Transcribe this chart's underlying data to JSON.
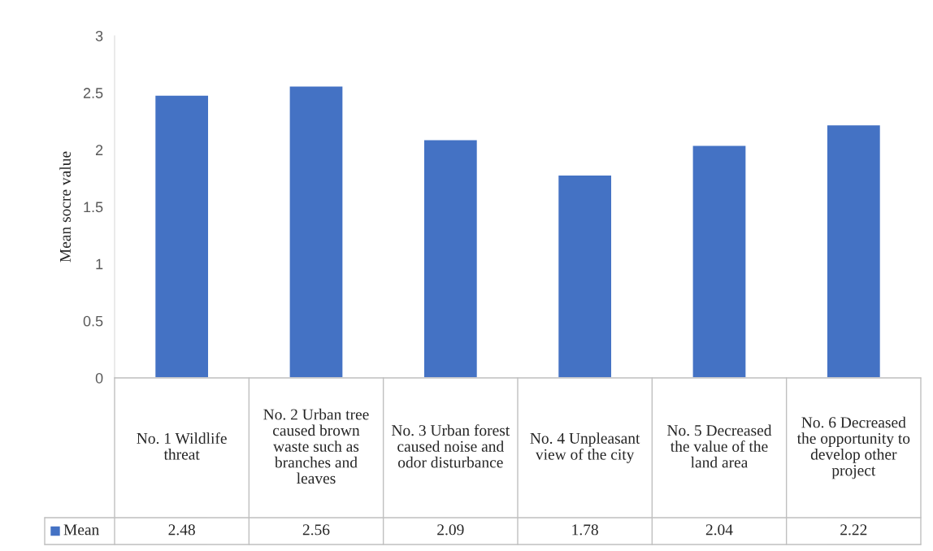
{
  "chart_data": {
    "type": "bar",
    "ylabel": "Mean socre value",
    "categories": [
      "No. 1 Wildlife threat",
      "No. 2 Urban tree caused brown waste such as branches and leaves",
      "No. 3 Urban forest caused noise and odor disturbance",
      "No. 4 Unpleasant view of the city",
      "No. 5 Decreased the value of the land area",
      "No. 6 Decreased the opportunity to develop other project"
    ],
    "series": [
      {
        "name": "Mean",
        "color": "#4472c4",
        "values": [
          2.48,
          2.56,
          2.09,
          1.78,
          2.04,
          2.22
        ]
      }
    ],
    "ylim": [
      0,
      3
    ],
    "yticks": [
      0,
      0.5,
      1,
      1.5,
      2,
      2.5,
      3
    ],
    "grid": false,
    "legend": "bottom",
    "data_labels": true
  }
}
